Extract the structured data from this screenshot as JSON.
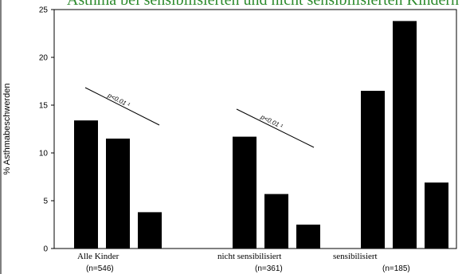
{
  "chart_data": {
    "type": "bar",
    "title": "Asthma bei sensibilisierten und nicht sensibilisierten Kindern",
    "ylabel": "% Asthmabeschwerden",
    "ylim": [
      0,
      25
    ],
    "yticks": [
      0,
      5,
      10,
      15,
      20,
      25
    ],
    "grid": false,
    "groups": [
      {
        "label": "Alle Kinder",
        "n": "(n=546)",
        "values": [
          13.4,
          11.5,
          3.8
        ]
      },
      {
        "label": "nicht sensibilisiert",
        "n": "(n=361)",
        "values": [
          11.7,
          5.7,
          2.5
        ]
      },
      {
        "label": "sensibilisiert",
        "n": "(n=185)",
        "values": [
          16.5,
          23.8,
          6.9
        ]
      }
    ],
    "annotations": [
      "p<0.01 ¹",
      "p<0.01 ¹"
    ],
    "colors": {
      "bar": "#000000",
      "title": "#2e8b2e"
    }
  }
}
